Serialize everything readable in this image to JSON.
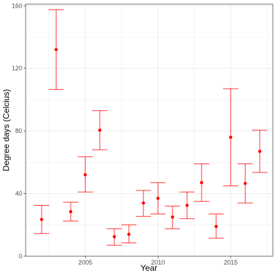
{
  "chart_data": {
    "type": "scatter",
    "title": "",
    "xlabel": "Year",
    "ylabel": "Degree days (Celcius)",
    "xlim": [
      2000.9,
      2017.9
    ],
    "ylim": [
      0,
      161
    ],
    "x_ticks": [
      2005,
      2010,
      2015
    ],
    "y_ticks": [
      0,
      40,
      80,
      120,
      160
    ],
    "grid": true,
    "legend": "none",
    "color": "#ff0000",
    "series": [
      {
        "points": [
          {
            "x": 2002,
            "y": 23.5,
            "ymin": 14.5,
            "ymax": 32.5
          },
          {
            "x": 2003,
            "y": 132.0,
            "ymin": 106.5,
            "ymax": 157.5
          },
          {
            "x": 2004,
            "y": 28.5,
            "ymin": 22.5,
            "ymax": 34.5
          },
          {
            "x": 2005,
            "y": 52.0,
            "ymin": 41.0,
            "ymax": 63.5
          },
          {
            "x": 2006,
            "y": 80.5,
            "ymin": 68.0,
            "ymax": 93.0
          },
          {
            "x": 2007,
            "y": 12.5,
            "ymin": 7.0,
            "ymax": 17.5
          },
          {
            "x": 2008,
            "y": 14.0,
            "ymin": 8.5,
            "ymax": 20.0
          },
          {
            "x": 2009,
            "y": 34.0,
            "ymin": 25.5,
            "ymax": 42.0
          },
          {
            "x": 2010,
            "y": 37.0,
            "ymin": 27.0,
            "ymax": 47.0
          },
          {
            "x": 2011,
            "y": 25.0,
            "ymin": 17.5,
            "ymax": 32.0
          },
          {
            "x": 2012,
            "y": 32.5,
            "ymin": 24.0,
            "ymax": 41.0
          },
          {
            "x": 2013,
            "y": 47.0,
            "ymin": 35.0,
            "ymax": 59.0
          },
          {
            "x": 2014,
            "y": 19.0,
            "ymin": 11.5,
            "ymax": 27.0
          },
          {
            "x": 2015,
            "y": 76.0,
            "ymin": 45.0,
            "ymax": 107.0
          },
          {
            "x": 2016,
            "y": 46.5,
            "ymin": 34.0,
            "ymax": 59.0
          },
          {
            "x": 2017,
            "y": 67.0,
            "ymin": 53.5,
            "ymax": 80.5
          }
        ]
      }
    ]
  }
}
